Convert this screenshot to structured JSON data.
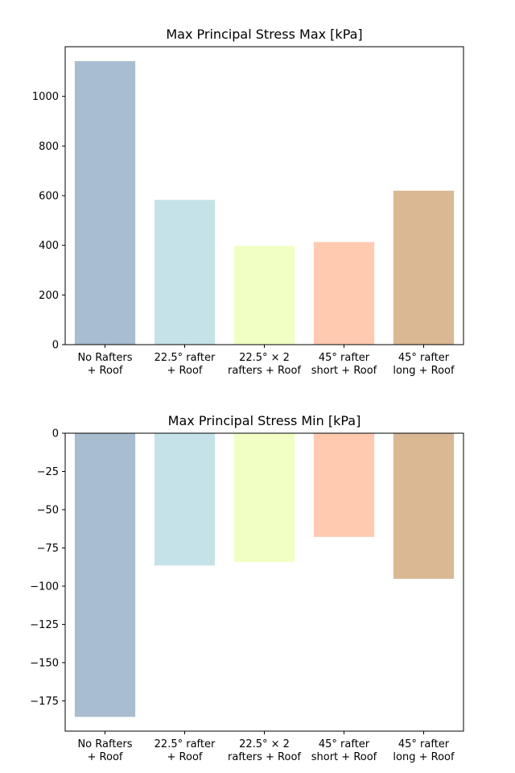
{
  "chart_data": [
    {
      "type": "bar",
      "title": "Max Principal Stress Max [kPa]",
      "categories": [
        [
          "No Rafters",
          "+ Roof"
        ],
        [
          "22.5° rafter",
          "+ Roof"
        ],
        [
          "22.5° × 2",
          "rafters + Roof"
        ],
        [
          "45° rafter",
          "short + Roof"
        ],
        [
          "45° rafter",
          "long + Roof"
        ]
      ],
      "values": [
        1142,
        583,
        398,
        413,
        620
      ],
      "colors": [
        "#a9bdd1",
        "#c6e2e9",
        "#f1ffc4",
        "#ffcaaf",
        "#dab894"
      ],
      "ylim": [
        0,
        1200
      ],
      "yticks": [
        0,
        200,
        400,
        600,
        800,
        1000
      ],
      "ytick_labels": [
        "0",
        "200",
        "400",
        "600",
        "800",
        "1000"
      ],
      "xlabel": "",
      "ylabel": "",
      "grid": false
    },
    {
      "type": "bar",
      "title": "Max Principal Stress Min [kPa]",
      "categories": [
        [
          "No Rafters",
          "+ Roof"
        ],
        [
          "22.5° rafter",
          "+ Roof"
        ],
        [
          "22.5° × 2",
          "rafters + Roof"
        ],
        [
          "45° rafter",
          "short + Roof"
        ],
        [
          "45° rafter",
          "long + Roof"
        ]
      ],
      "values": [
        -185.5,
        -86.5,
        -84.2,
        -67.8,
        -95.2
      ],
      "colors": [
        "#a9bdd1",
        "#c6e2e9",
        "#f1ffc4",
        "#ffcaaf",
        "#dab894"
      ],
      "ylim": [
        -194.8,
        0
      ],
      "yticks": [
        0,
        -25,
        -50,
        -75,
        -100,
        -125,
        -150,
        -175
      ],
      "ytick_labels": [
        "0",
        "−25",
        "−50",
        "−75",
        "−100",
        "−125",
        "−150",
        "−175"
      ],
      "xlabel": "",
      "ylabel": "",
      "grid": false
    }
  ]
}
